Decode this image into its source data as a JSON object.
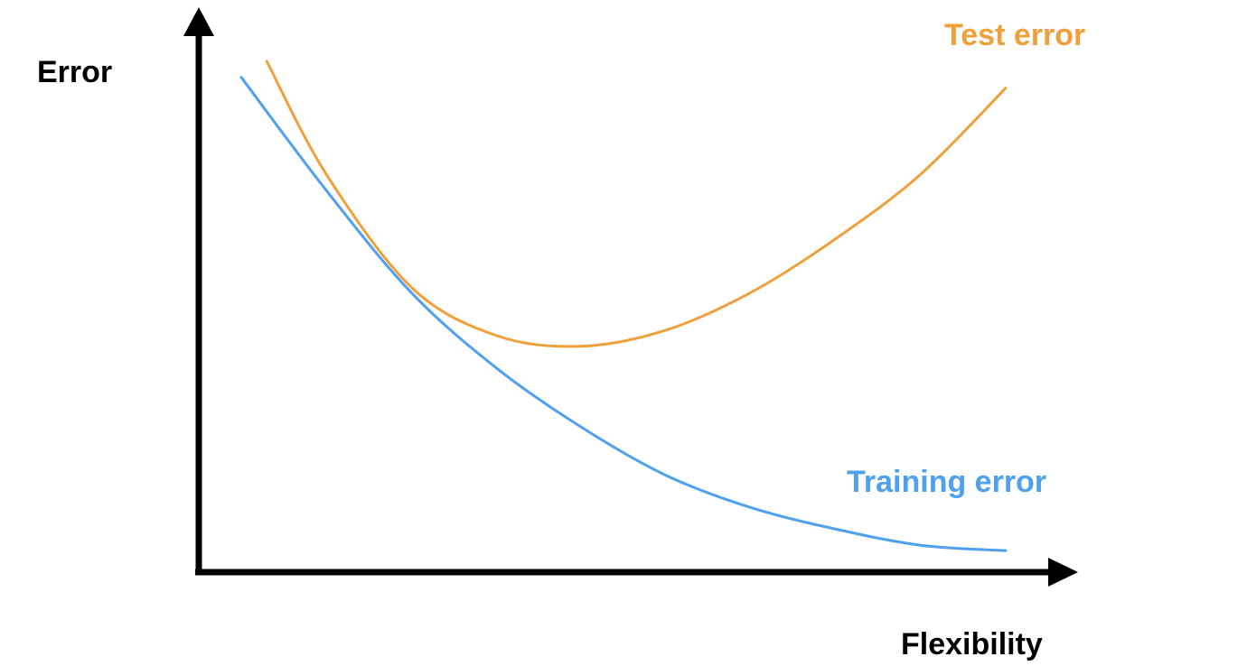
{
  "chart_data": {
    "type": "line",
    "title": "",
    "xlabel": "Flexibility",
    "ylabel": "Error",
    "grid": false,
    "legend": "none",
    "ticks": false,
    "series": [
      {
        "name": "Test error",
        "color": "#F0A03A",
        "label_position": "top-right",
        "x": [
          0.08,
          0.15,
          0.25,
          0.35,
          0.45,
          0.55,
          0.65,
          0.75,
          0.85,
          0.95
        ],
        "y": [
          0.95,
          0.74,
          0.53,
          0.44,
          0.42,
          0.45,
          0.52,
          0.62,
          0.74,
          0.9
        ]
      },
      {
        "name": "Training error",
        "color": "#4FA0EE",
        "label_position": "bottom-right",
        "x": [
          0.05,
          0.15,
          0.25,
          0.35,
          0.45,
          0.55,
          0.65,
          0.75,
          0.85,
          0.95
        ],
        "y": [
          0.92,
          0.71,
          0.52,
          0.38,
          0.27,
          0.18,
          0.12,
          0.08,
          0.05,
          0.04
        ]
      }
    ]
  }
}
